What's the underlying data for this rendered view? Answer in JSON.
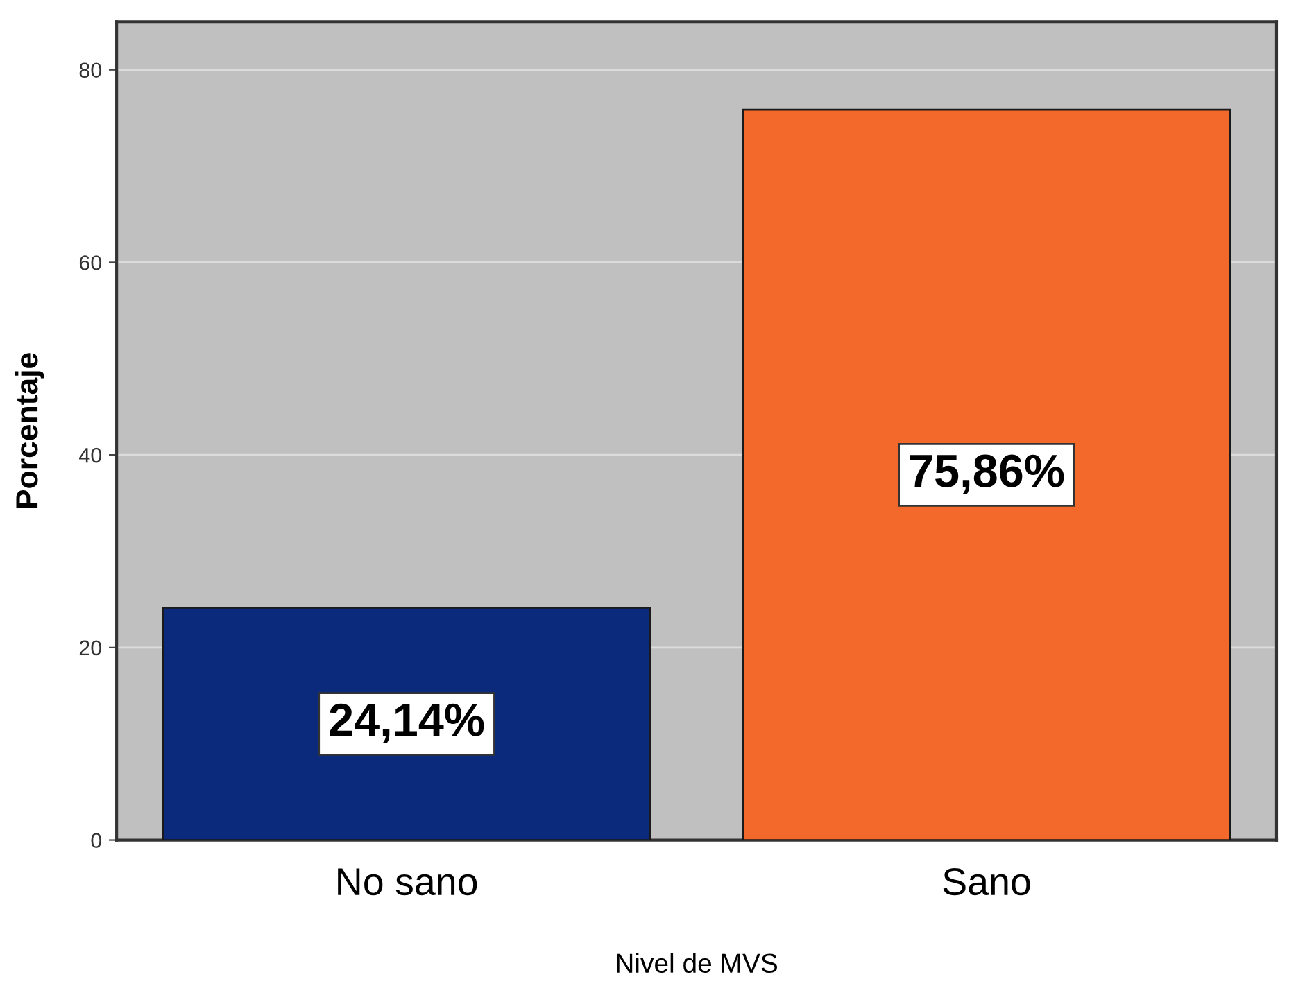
{
  "chart_data": {
    "type": "bar",
    "xlabel": "Nivel de MVS",
    "ylabel": "Porcentaje",
    "categories": [
      "No sano",
      "Sano"
    ],
    "values": [
      24.14,
      75.86
    ],
    "colors": [
      "#0c2a7c",
      "#f2692b"
    ],
    "value_labels": [
      "24,14%",
      "75,86%"
    ],
    "ylim": [
      0,
      85
    ],
    "yticks": [
      0,
      20,
      40,
      60,
      80
    ],
    "grid": "y",
    "legend": false
  }
}
